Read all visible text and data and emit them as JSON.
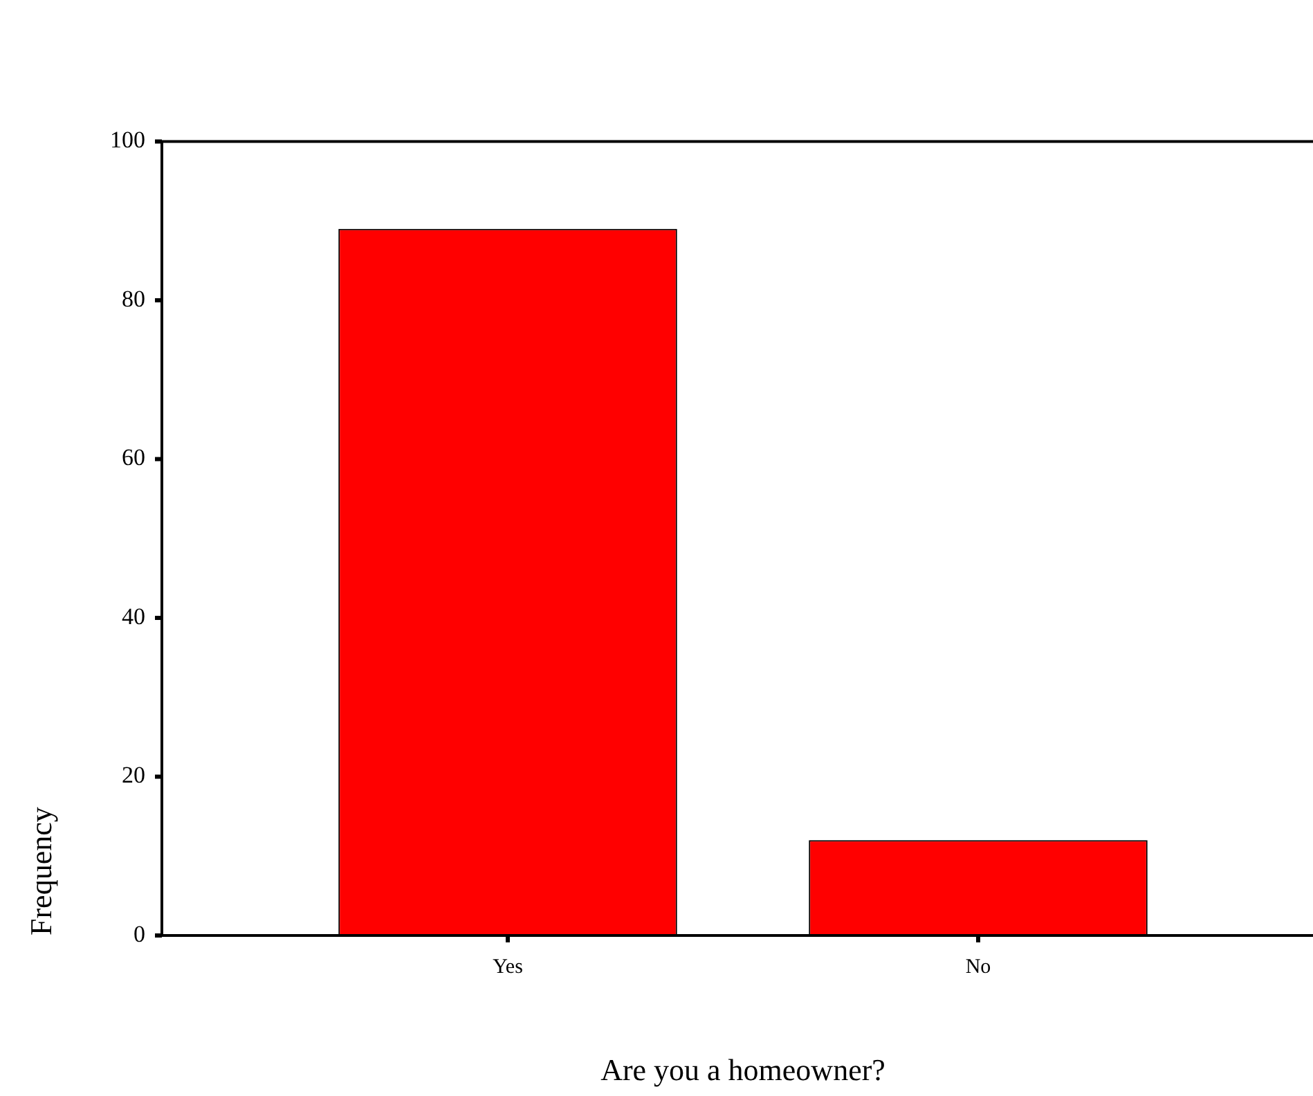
{
  "chart_data": {
    "type": "bar",
    "xlabel": "Are you a homeowner?",
    "ylabel": "Frequency",
    "categories": [
      "Yes",
      "No"
    ],
    "values": [
      89,
      12
    ],
    "color": "#ff0000",
    "ylim": [
      0,
      100
    ],
    "yticks": [
      0,
      20,
      40,
      60,
      80,
      100
    ]
  }
}
